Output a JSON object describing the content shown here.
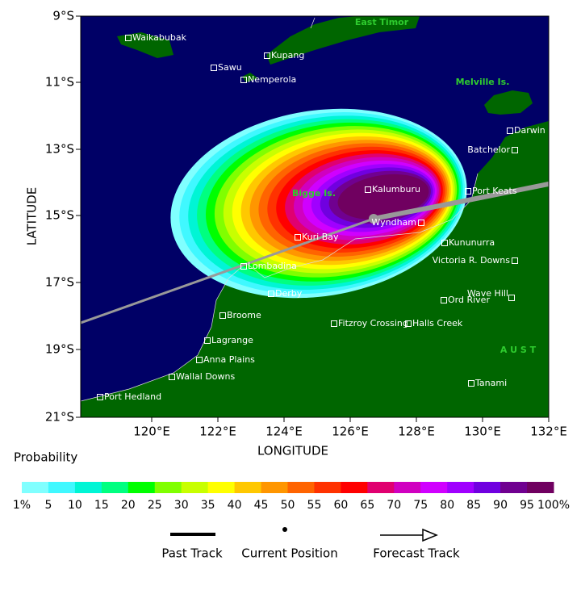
{
  "map": {
    "lat_labels": [
      "9°S",
      "11°S",
      "13°S",
      "15°S",
      "17°S",
      "19°S",
      "21°S"
    ],
    "lon_labels": [
      "120°E",
      "122°E",
      "124°E",
      "126°E",
      "128°E",
      "130°E",
      "132°E"
    ],
    "x_axis_label": "LONGITUDE",
    "y_axis_label": "LATITUDE",
    "places": [
      "Waikabubak",
      "Sawu",
      "Kupang",
      "Nemperola",
      "Darwin",
      "Batchelor",
      "Kalumburu",
      "Port Keats",
      "Wyndham",
      "Kuri Bay",
      "Kununurra",
      "Victoria R. Downs",
      "Lombadina",
      "Derby",
      "Wave Hill",
      "Ord River",
      "Broome",
      "Fitzroy Crossing",
      "Halls Creek",
      "Lagrange",
      "Anna Plains",
      "Wallal Downs",
      "Tanami",
      "Port Hedland"
    ],
    "regions": [
      "East Timor",
      "Melville Is.",
      "Bigge Is.",
      "A U S T"
    ]
  },
  "colorbar": {
    "title": "Probability",
    "labels": [
      "1%",
      "5",
      "10",
      "15",
      "20",
      "25",
      "30",
      "35",
      "40",
      "45",
      "50",
      "55",
      "60",
      "65",
      "70",
      "75",
      "80",
      "85",
      "90",
      "95",
      "100%"
    ],
    "colors": [
      "#80ffff",
      "#40f8ff",
      "#00f5d5",
      "#00ff80",
      "#00ff00",
      "#80ff00",
      "#c8ff00",
      "#ffff00",
      "#ffc800",
      "#ff9600",
      "#ff6400",
      "#ff3200",
      "#ff0000",
      "#e00070",
      "#d000c0",
      "#d000ff",
      "#a000ff",
      "#7000e0",
      "#700090",
      "#700060"
    ]
  },
  "legend": [
    "Past Track",
    "Current Position",
    "Forecast Track"
  ]
}
